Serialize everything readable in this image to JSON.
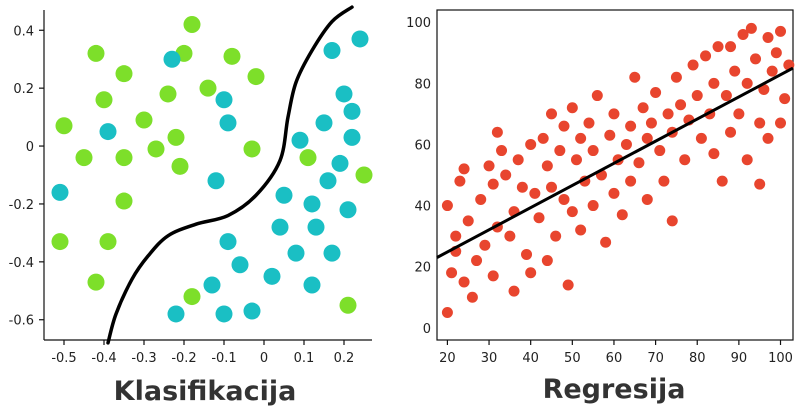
{
  "chart_data": [
    {
      "type": "scatter",
      "title": "Klasifikacija",
      "xlim": [
        -0.55,
        0.27
      ],
      "ylim": [
        -0.67,
        0.47
      ],
      "xticks": [
        -0.5,
        -0.4,
        -0.3,
        -0.2,
        -0.1,
        0,
        0.1,
        0.2
      ],
      "xtick_labels": [
        "-0.5",
        "-0.4",
        "-0.3",
        "-0.2",
        "-0.1",
        "0",
        "0.1",
        "0.2"
      ],
      "yticks": [
        0.4,
        0.2,
        0,
        -0.2,
        -0.4,
        -0.6
      ],
      "ytick_labels": [
        "0.4",
        "0.2",
        "0",
        "-0.2",
        "-0.4",
        "-0.6"
      ],
      "grid": false,
      "colors": {
        "class_a": "#7ddf2a",
        "class_b": "#1abfc4",
        "boundary": "#000000"
      },
      "series": [
        {
          "class": "a",
          "points": [
            [
              -0.18,
              0.42
            ],
            [
              -0.42,
              0.32
            ],
            [
              -0.2,
              0.32
            ],
            [
              -0.08,
              0.31
            ],
            [
              -0.35,
              0.25
            ],
            [
              -0.02,
              0.24
            ],
            [
              -0.14,
              0.2
            ],
            [
              -0.4,
              0.16
            ],
            [
              -0.24,
              0.18
            ],
            [
              -0.5,
              0.07
            ],
            [
              -0.3,
              0.09
            ],
            [
              -0.22,
              0.03
            ],
            [
              -0.27,
              -0.01
            ],
            [
              -0.45,
              -0.04
            ],
            [
              -0.35,
              -0.04
            ],
            [
              -0.21,
              -0.07
            ],
            [
              -0.03,
              -0.01
            ],
            [
              0.11,
              -0.04
            ],
            [
              0.25,
              -0.1
            ],
            [
              -0.35,
              -0.19
            ],
            [
              -0.51,
              -0.33
            ],
            [
              -0.39,
              -0.33
            ],
            [
              -0.42,
              -0.47
            ],
            [
              -0.18,
              -0.52
            ],
            [
              0.21,
              -0.55
            ]
          ]
        },
        {
          "class": "b",
          "points": [
            [
              -0.23,
              0.3
            ],
            [
              0.17,
              0.33
            ],
            [
              0.24,
              0.37
            ],
            [
              -0.1,
              0.16
            ],
            [
              0.2,
              0.18
            ],
            [
              -0.39,
              0.05
            ],
            [
              -0.09,
              0.08
            ],
            [
              0.15,
              0.08
            ],
            [
              0.22,
              0.12
            ],
            [
              0.22,
              0.03
            ],
            [
              0.09,
              0.02
            ],
            [
              0.19,
              -0.06
            ],
            [
              -0.12,
              -0.12
            ],
            [
              0.16,
              -0.12
            ],
            [
              0.05,
              -0.17
            ],
            [
              0.12,
              -0.2
            ],
            [
              -0.51,
              -0.16
            ],
            [
              0.21,
              -0.22
            ],
            [
              0.04,
              -0.28
            ],
            [
              0.13,
              -0.28
            ],
            [
              -0.09,
              -0.33
            ],
            [
              0.08,
              -0.37
            ],
            [
              0.17,
              -0.37
            ],
            [
              -0.06,
              -0.41
            ],
            [
              0.02,
              -0.45
            ],
            [
              -0.13,
              -0.48
            ],
            [
              0.12,
              -0.48
            ],
            [
              -0.22,
              -0.58
            ],
            [
              -0.1,
              -0.58
            ],
            [
              -0.03,
              -0.57
            ]
          ]
        }
      ],
      "boundary": [
        [
          -0.39,
          -0.68
        ],
        [
          -0.37,
          -0.58
        ],
        [
          -0.33,
          -0.46
        ],
        [
          -0.29,
          -0.38
        ],
        [
          -0.24,
          -0.31
        ],
        [
          -0.17,
          -0.27
        ],
        [
          -0.09,
          -0.24
        ],
        [
          -0.02,
          -0.17
        ],
        [
          0.04,
          -0.05
        ],
        [
          0.06,
          0.1
        ],
        [
          0.08,
          0.22
        ],
        [
          0.12,
          0.33
        ],
        [
          0.17,
          0.43
        ],
        [
          0.22,
          0.48
        ]
      ]
    },
    {
      "type": "scatter",
      "title": "Regresija",
      "xlim": [
        17.5,
        103
      ],
      "ylim": [
        -4,
        104
      ],
      "xticks": [
        20,
        30,
        40,
        50,
        60,
        70,
        80,
        90,
        100
      ],
      "xtick_labels": [
        "20",
        "30",
        "40",
        "50",
        "60",
        "70",
        "80",
        "90",
        "100"
      ],
      "yticks": [
        0,
        20,
        40,
        60,
        80,
        100
      ],
      "ytick_labels": [
        "0",
        "20",
        "40",
        "60",
        "80",
        "100"
      ],
      "grid": false,
      "colors": {
        "points": "#e8452e",
        "fit_line": "#000000"
      },
      "trend_line": {
        "x": [
          17.5,
          103
        ],
        "y": [
          23,
          85
        ]
      },
      "points": [
        [
          20,
          5
        ],
        [
          21,
          18
        ],
        [
          22,
          25
        ],
        [
          20,
          40
        ],
        [
          23,
          48
        ],
        [
          22,
          30
        ],
        [
          24,
          15
        ],
        [
          25,
          35
        ],
        [
          26,
          10
        ],
        [
          27,
          22
        ],
        [
          28,
          42
        ],
        [
          24,
          52
        ],
        [
          29,
          27
        ],
        [
          30,
          53
        ],
        [
          31,
          47
        ],
        [
          32,
          33
        ],
        [
          31,
          17
        ],
        [
          33,
          58
        ],
        [
          32,
          64
        ],
        [
          34,
          50
        ],
        [
          35,
          30
        ],
        [
          36,
          38
        ],
        [
          36,
          12
        ],
        [
          37,
          55
        ],
        [
          38,
          46
        ],
        [
          39,
          24
        ],
        [
          40,
          60
        ],
        [
          41,
          44
        ],
        [
          40,
          18
        ],
        [
          42,
          36
        ],
        [
          43,
          62
        ],
        [
          44,
          53
        ],
        [
          44,
          22
        ],
        [
          45,
          70
        ],
        [
          45,
          46
        ],
        [
          46,
          30
        ],
        [
          47,
          58
        ],
        [
          48,
          66
        ],
        [
          48,
          42
        ],
        [
          49,
          14
        ],
        [
          50,
          38
        ],
        [
          50,
          72
        ],
        [
          51,
          55
        ],
        [
          52,
          62
        ],
        [
          52,
          32
        ],
        [
          53,
          48
        ],
        [
          54,
          67
        ],
        [
          55,
          58
        ],
        [
          55,
          40
        ],
        [
          56,
          76
        ],
        [
          57,
          50
        ],
        [
          58,
          28
        ],
        [
          59,
          63
        ],
        [
          60,
          44
        ],
        [
          60,
          70
        ],
        [
          61,
          55
        ],
        [
          62,
          37
        ],
        [
          63,
          60
        ],
        [
          64,
          66
        ],
        [
          64,
          48
        ],
        [
          65,
          82
        ],
        [
          66,
          54
        ],
        [
          67,
          72
        ],
        [
          68,
          62
        ],
        [
          68,
          42
        ],
        [
          69,
          67
        ],
        [
          70,
          77
        ],
        [
          71,
          58
        ],
        [
          72,
          48
        ],
        [
          73,
          70
        ],
        [
          74,
          64
        ],
        [
          74,
          35
        ],
        [
          75,
          82
        ],
        [
          76,
          73
        ],
        [
          77,
          55
        ],
        [
          78,
          68
        ],
        [
          79,
          86
        ],
        [
          80,
          76
        ],
        [
          81,
          62
        ],
        [
          82,
          89
        ],
        [
          83,
          70
        ],
        [
          84,
          57
        ],
        [
          84,
          80
        ],
        [
          85,
          92
        ],
        [
          86,
          48
        ],
        [
          87,
          76
        ],
        [
          88,
          64
        ],
        [
          88,
          92
        ],
        [
          89,
          84
        ],
        [
          90,
          70
        ],
        [
          91,
          96
        ],
        [
          92,
          80
        ],
        [
          92,
          55
        ],
        [
          93,
          98
        ],
        [
          94,
          88
        ],
        [
          95,
          67
        ],
        [
          95,
          47
        ],
        [
          96,
          78
        ],
        [
          97,
          95
        ],
        [
          97,
          62
        ],
        [
          98,
          84
        ],
        [
          99,
          90
        ],
        [
          100,
          97
        ],
        [
          100,
          67
        ],
        [
          101,
          75
        ],
        [
          102,
          86
        ]
      ]
    }
  ]
}
